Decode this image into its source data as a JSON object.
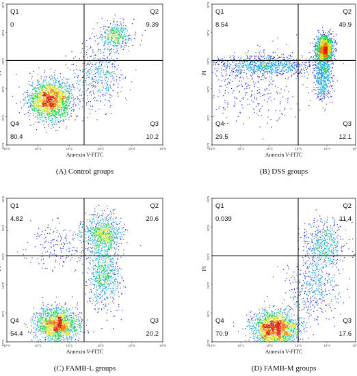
{
  "figure": {
    "x_axis_scale": "log",
    "y_axis_scale": "log",
    "xlim": [
      1,
      100000
    ],
    "ylim": [
      1,
      100000
    ],
    "tick_labels": [
      "10^0",
      "10^1",
      "10^2",
      "10^3",
      "10^4",
      "10^5"
    ],
    "colormap": [
      "#1f2fd6",
      "#19a7d9",
      "#1ecf4a",
      "#d8e21a",
      "#f07a12",
      "#e02010"
    ]
  },
  "chart_data": [
    {
      "type": "scatter",
      "panel": "A",
      "caption": "(A) Control groups",
      "xlabel": "Annexin V-FITC",
      "ylabel": "PI",
      "gate": {
        "x": 300,
        "y": 1000
      },
      "quadrants": [
        {
          "name": "Q1",
          "value": "0"
        },
        {
          "name": "Q2",
          "value": "9.39"
        },
        {
          "name": "Q3",
          "value": "10.2"
        },
        {
          "name": "Q4",
          "value": "80.4"
        }
      ],
      "populations": [
        {
          "x": 25,
          "y": 40,
          "spread_x": 0.35,
          "spread_y": 0.35,
          "count": 1800
        },
        {
          "x": 3000,
          "y": 8000,
          "spread_x": 0.25,
          "spread_y": 0.25,
          "count": 350
        },
        {
          "x": 800,
          "y": 300,
          "spread_x": 0.45,
          "spread_y": 0.6,
          "count": 450
        }
      ]
    },
    {
      "type": "scatter",
      "panel": "B",
      "caption": "(B) DSS groups",
      "xlabel": "Annexin V-FITC",
      "ylabel": "PI",
      "gate": {
        "x": 1000,
        "y": 1000
      },
      "quadrants": [
        {
          "name": "Q1",
          "value": "8.54"
        },
        {
          "name": "Q2",
          "value": "49.9"
        },
        {
          "name": "Q3",
          "value": "12.1"
        },
        {
          "name": "Q4",
          "value": "29.5"
        }
      ],
      "populations": [
        {
          "x": 8000,
          "y": 2500,
          "spread_x": 0.15,
          "spread_y": 0.25,
          "count": 1400
        },
        {
          "x": 80,
          "y": 700,
          "spread_x": 0.9,
          "spread_y": 0.18,
          "count": 900
        },
        {
          "x": 7000,
          "y": 250,
          "spread_x": 0.15,
          "spread_y": 0.4,
          "count": 500
        },
        {
          "x": 30,
          "y": 100,
          "spread_x": 0.8,
          "spread_y": 0.6,
          "count": 300
        }
      ]
    },
    {
      "type": "scatter",
      "panel": "C",
      "caption": "(C) FAMB-L groups",
      "xlabel": "Annexin V-FITC",
      "ylabel": "PI",
      "gate": {
        "x": 300,
        "y": 1000
      },
      "quadrants": [
        {
          "name": "Q1",
          "value": "4.82"
        },
        {
          "name": "Q2",
          "value": "20.6"
        },
        {
          "name": "Q3",
          "value": "20.2"
        },
        {
          "name": "Q4",
          "value": "54.4"
        }
      ],
      "populations": [
        {
          "x": 40,
          "y": 4,
          "spread_x": 0.35,
          "spread_y": 0.3,
          "count": 1500
        },
        {
          "x": 1200,
          "y": 6000,
          "spread_x": 0.3,
          "spread_y": 0.35,
          "count": 700
        },
        {
          "x": 1300,
          "y": 200,
          "spread_x": 0.25,
          "spread_y": 0.55,
          "count": 650
        },
        {
          "x": 60,
          "y": 2500,
          "spread_x": 0.6,
          "spread_y": 0.4,
          "count": 200
        }
      ]
    },
    {
      "type": "scatter",
      "panel": "D",
      "caption": "(D) FAMB-M groups",
      "xlabel": "Annexin V-FITC",
      "ylabel": "PI",
      "gate": {
        "x": 1000,
        "y": 1000
      },
      "quadrants": [
        {
          "name": "Q1",
          "value": "0.039"
        },
        {
          "name": "Q2",
          "value": "11.4"
        },
        {
          "name": "Q3",
          "value": "17.6"
        },
        {
          "name": "Q4",
          "value": "70.9"
        }
      ],
      "populations": [
        {
          "x": 150,
          "y": 3,
          "spread_x": 0.4,
          "spread_y": 0.3,
          "count": 1800
        },
        {
          "x": 8000,
          "y": 2500,
          "spread_x": 0.35,
          "spread_y": 0.4,
          "count": 500
        },
        {
          "x": 3000,
          "y": 80,
          "spread_x": 0.45,
          "spread_y": 0.6,
          "count": 450
        }
      ]
    }
  ]
}
